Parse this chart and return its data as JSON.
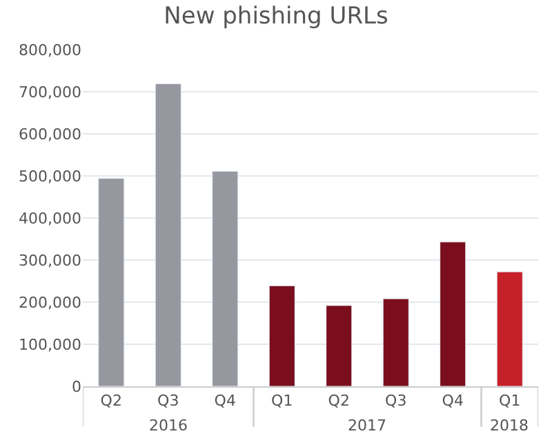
{
  "chart_data": {
    "type": "bar",
    "title": "New phishing URLs",
    "categories": [
      "Q2",
      "Q3",
      "Q4",
      "Q1",
      "Q2",
      "Q3",
      "Q4",
      "Q1"
    ],
    "values": [
      494000,
      719000,
      511000,
      239000,
      192000,
      208000,
      343000,
      272000
    ],
    "colors": [
      "#97979f",
      "#97979f",
      "#97979f",
      "#7a0e1c",
      "#7a0e1c",
      "#7a0e1c",
      "#7a0e1c",
      "#c62129"
    ],
    "annotations": [
      "2016",
      "2017",
      "2018"
    ],
    "ylim": [
      0,
      800000
    ],
    "yticks": [
      {
        "value": 0,
        "label": "0"
      },
      {
        "value": 100000,
        "label": "100,000"
      },
      {
        "value": 200000,
        "label": "200,000"
      },
      {
        "value": 300000,
        "label": "300,000"
      },
      {
        "value": 400000,
        "label": "400,000"
      },
      {
        "value": 500000,
        "label": "500,000"
      },
      {
        "value": 600000,
        "label": "600,000"
      },
      {
        "value": 700000,
        "label": "700,000"
      },
      {
        "value": 800000,
        "label": "800,000"
      }
    ],
    "grid": "y"
  }
}
